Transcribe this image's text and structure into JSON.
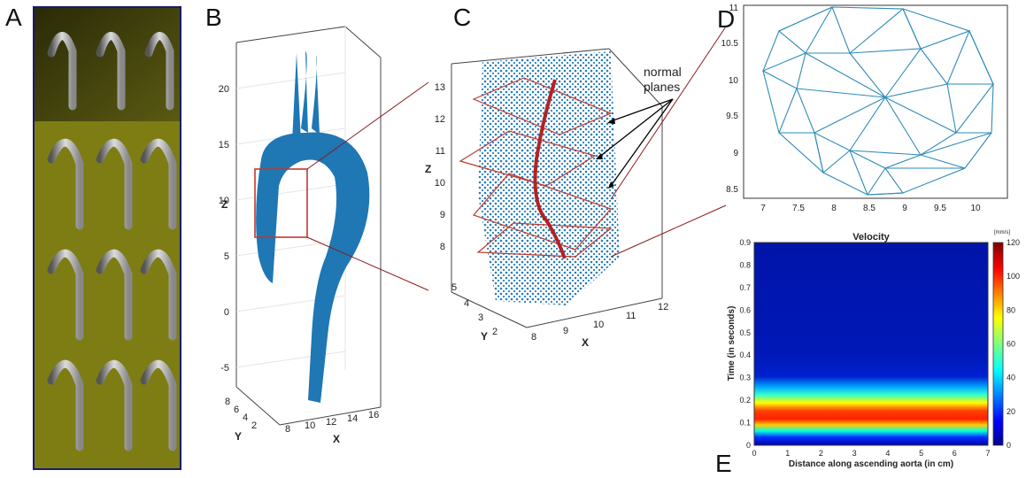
{
  "figure": {
    "panel_letters": {
      "A": "A",
      "B": "B",
      "C": "C",
      "D": "D",
      "E": "E"
    },
    "panel_b": {
      "z_label": "Z",
      "y_label": "Y",
      "x_label": "X",
      "z_ticks": [
        "20",
        "15",
        "10",
        "5",
        "0",
        "-5"
      ],
      "y_ticks": [
        "8",
        "6",
        "4",
        "2"
      ],
      "x_ticks": [
        "8",
        "10",
        "12",
        "14",
        "16"
      ]
    },
    "panel_c": {
      "z_label": "Z",
      "y_label": "Y",
      "x_label": "X",
      "z_ticks": [
        "13",
        "12",
        "11",
        "10",
        "9",
        "8"
      ],
      "y_ticks": [
        "5",
        "4",
        "3",
        "2"
      ],
      "x_ticks": [
        "8",
        "9",
        "10",
        "11",
        "12"
      ],
      "annotation_line1": "normal",
      "annotation_line2": "planes"
    },
    "panel_d": {
      "x_ticks": [
        "7",
        "7.5",
        "8",
        "8.5",
        "9",
        "9.5",
        "10"
      ],
      "y_ticks": [
        "11",
        "10.5",
        "10",
        "9.5",
        "9",
        "8.5"
      ]
    },
    "panel_e": {
      "title": "Velocity",
      "xlabel": "Distance along ascending aorta (in cm)",
      "ylabel": "Time (in seconds)",
      "x_ticks": [
        "0",
        "1",
        "2",
        "3",
        "4",
        "5",
        "6",
        "7"
      ],
      "y_ticks": [
        "0.9",
        "0.8",
        "0.7",
        "0.6",
        "0.5",
        "0.4",
        "0.3",
        "0.2",
        "0.1",
        "0"
      ],
      "colorbar_unit": "[mm/s]",
      "colorbar_ticks": [
        "120",
        "100",
        "80",
        "60",
        "40",
        "20",
        "0"
      ]
    },
    "colors": {
      "point_blue": "#1f77b4",
      "mesh_blue": "#2e8bb8",
      "plane_red": "#c0392b",
      "centerline_red": "#b22222",
      "mri_yellow": "#8a8a10",
      "panel_a_border": "#1a1a6e"
    }
  },
  "chart_data": [
    {
      "type": "heatmap",
      "title": "Velocity",
      "xlabel": "Distance along ascending aorta (in cm)",
      "ylabel": "Time (in seconds)",
      "xlim": [
        0,
        7
      ],
      "ylim": [
        0,
        0.9
      ],
      "colorbar_label": "[mm/s]",
      "colorbar_range": [
        0,
        120
      ],
      "bands": [
        {
          "t_start": 0.0,
          "t_end": 0.05,
          "velocity": 12
        },
        {
          "t_start": 0.05,
          "t_end": 0.09,
          "velocity": 55
        },
        {
          "t_start": 0.09,
          "t_end": 0.19,
          "velocity": 105
        },
        {
          "t_start": 0.19,
          "t_end": 0.26,
          "velocity": 60
        },
        {
          "t_start": 0.26,
          "t_end": 0.32,
          "velocity": 30
        },
        {
          "t_start": 0.32,
          "t_end": 0.9,
          "velocity": 8
        }
      ]
    }
  ]
}
